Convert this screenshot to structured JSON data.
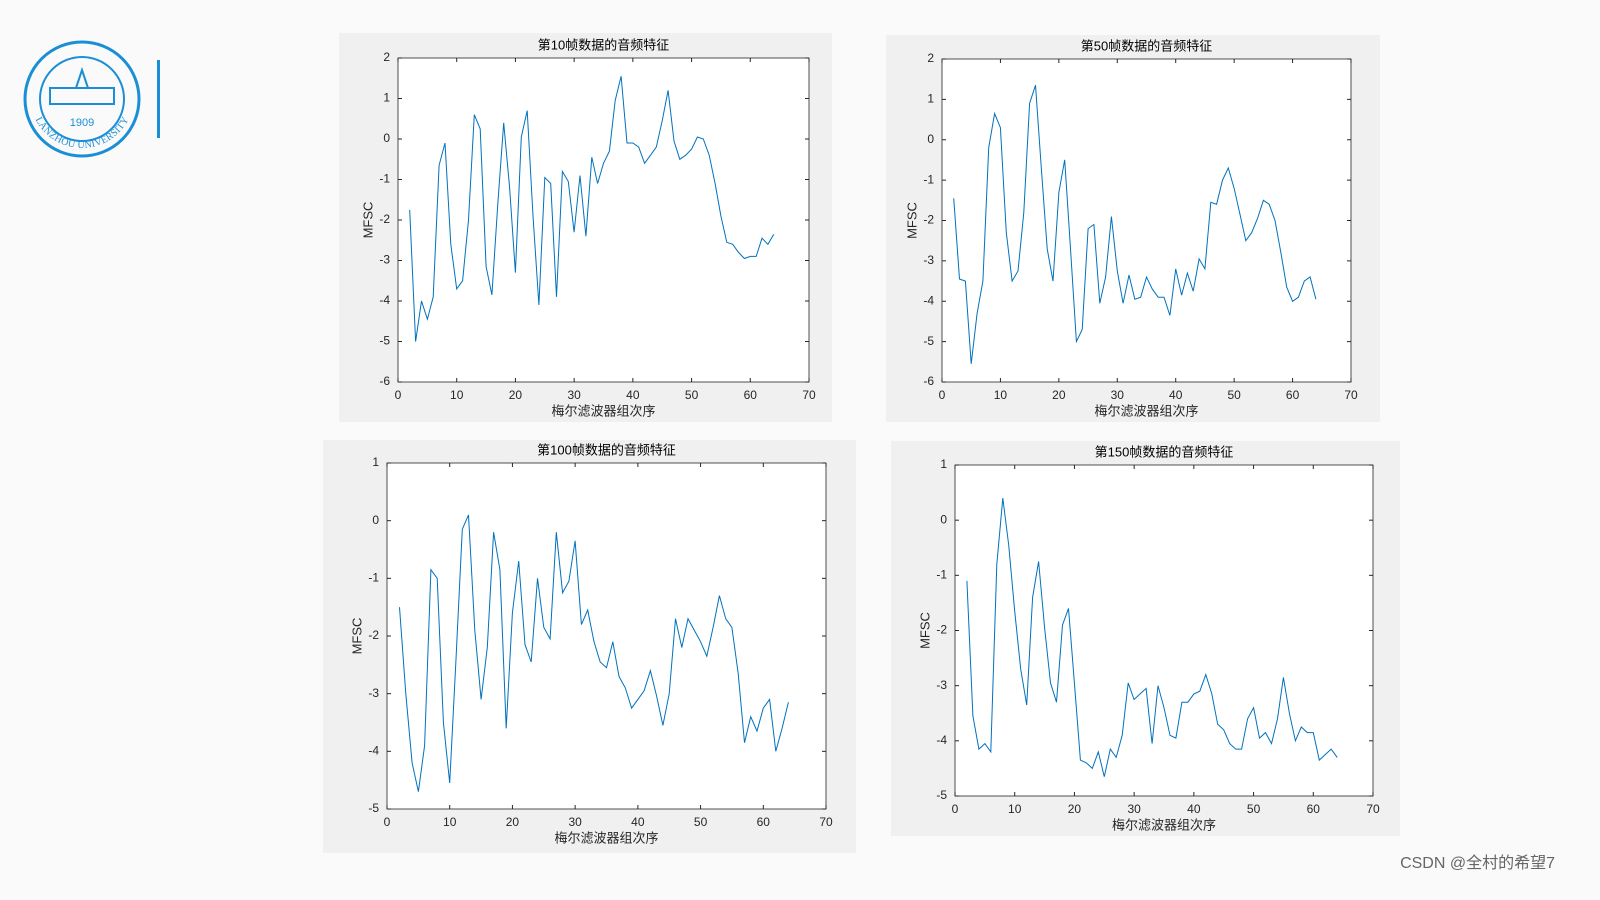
{
  "chart_data": [
    {
      "type": "line",
      "title": "第10帧数据的音频特征",
      "x_label": "梅尔滤波器组次序",
      "y_label": "MFSC",
      "x": [
        2,
        3,
        4,
        5,
        6,
        7,
        8,
        9,
        10,
        11,
        12,
        13,
        14,
        15,
        16,
        17,
        18,
        19,
        20,
        21,
        22,
        23,
        24,
        25,
        26,
        27,
        28,
        29,
        30,
        31,
        32,
        33,
        34,
        35,
        36,
        37,
        38,
        39,
        40,
        41,
        42,
        43,
        44,
        45,
        46,
        47,
        48,
        49,
        50,
        51,
        52,
        53,
        54,
        55,
        56,
        57,
        58,
        59,
        60,
        61,
        62,
        63,
        64
      ],
      "series": [
        {
          "color": "#0072bd",
          "values": [
            -1.75,
            -5.0,
            -4.0,
            -4.45,
            -3.9,
            -0.65,
            -0.1,
            -2.6,
            -3.7,
            -3.5,
            -2.0,
            0.6,
            0.25,
            -3.15,
            -3.85,
            -1.6,
            0.4,
            -1.2,
            -3.3,
            0.05,
            0.7,
            -1.9,
            -4.1,
            -0.95,
            -1.1,
            -3.9,
            -0.8,
            -1.05,
            -2.3,
            -0.9,
            -2.4,
            -0.45,
            -1.1,
            -0.6,
            -0.3,
            0.95,
            1.55,
            -0.1,
            -0.1,
            -0.2,
            -0.6,
            -0.4,
            -0.2,
            0.45,
            1.2,
            -0.05,
            -0.5,
            -0.4,
            -0.25,
            0.05,
            0.0,
            -0.4,
            -1.1,
            -1.9,
            -2.55,
            -2.6,
            -2.8,
            -2.95,
            -2.9,
            -2.9,
            -2.45,
            -2.6,
            -2.35
          ]
        }
      ],
      "xlim": [
        0,
        70
      ],
      "xticks": [
        0,
        10,
        20,
        30,
        40,
        50,
        60,
        70
      ],
      "ylim": [
        -6,
        2
      ],
      "yticks": [
        -6,
        -5,
        -4,
        -3,
        -2,
        -1,
        0,
        1,
        2
      ]
    },
    {
      "type": "line",
      "title": "第50帧数据的音频特征",
      "x_label": "梅尔滤波器组次序",
      "y_label": "MFSC",
      "x": [
        2,
        3,
        4,
        5,
        6,
        7,
        8,
        9,
        10,
        11,
        12,
        13,
        14,
        15,
        16,
        17,
        18,
        19,
        20,
        21,
        22,
        23,
        24,
        25,
        26,
        27,
        28,
        29,
        30,
        31,
        32,
        33,
        34,
        35,
        36,
        37,
        38,
        39,
        40,
        41,
        42,
        43,
        44,
        45,
        46,
        47,
        48,
        49,
        50,
        51,
        52,
        53,
        54,
        55,
        56,
        57,
        58,
        59,
        60,
        61,
        62,
        63,
        64
      ],
      "series": [
        {
          "color": "#0072bd",
          "values": [
            -1.45,
            -3.45,
            -3.5,
            -5.55,
            -4.3,
            -3.5,
            -0.2,
            0.65,
            0.3,
            -2.3,
            -3.5,
            -3.25,
            -1.8,
            0.9,
            1.35,
            -0.7,
            -2.7,
            -3.5,
            -1.3,
            -0.5,
            -2.7,
            -5.0,
            -4.7,
            -2.2,
            -2.1,
            -4.05,
            -3.4,
            -1.9,
            -3.25,
            -4.05,
            -3.35,
            -3.95,
            -3.9,
            -3.4,
            -3.7,
            -3.9,
            -3.9,
            -4.35,
            -3.2,
            -3.85,
            -3.3,
            -3.75,
            -2.95,
            -3.2,
            -1.55,
            -1.6,
            -1.0,
            -0.7,
            -1.2,
            -1.85,
            -2.5,
            -2.3,
            -1.95,
            -1.5,
            -1.6,
            -2.0,
            -2.8,
            -3.65,
            -4.0,
            -3.9,
            -3.5,
            -3.4,
            -3.95
          ]
        }
      ],
      "xlim": [
        0,
        70
      ],
      "xticks": [
        0,
        10,
        20,
        30,
        40,
        50,
        60,
        70
      ],
      "ylim": [
        -6,
        2
      ],
      "yticks": [
        -6,
        -5,
        -4,
        -3,
        -2,
        -1,
        0,
        1,
        2
      ]
    },
    {
      "type": "line",
      "title": "第100帧数据的音频特征",
      "x_label": "梅尔滤波器组次序",
      "y_label": "MFSC",
      "x": [
        2,
        3,
        4,
        5,
        6,
        7,
        8,
        9,
        10,
        11,
        12,
        13,
        14,
        15,
        16,
        17,
        18,
        19,
        20,
        21,
        22,
        23,
        24,
        25,
        26,
        27,
        28,
        29,
        30,
        31,
        32,
        33,
        34,
        35,
        36,
        37,
        38,
        39,
        40,
        41,
        42,
        43,
        44,
        45,
        46,
        47,
        48,
        49,
        50,
        51,
        52,
        53,
        54,
        55,
        56,
        57,
        58,
        59,
        60,
        61,
        62,
        63,
        64
      ],
      "series": [
        {
          "color": "#0072bd",
          "values": [
            -1.5,
            -3.0,
            -4.2,
            -4.7,
            -3.9,
            -0.85,
            -1.0,
            -3.5,
            -4.55,
            -2.4,
            -0.15,
            0.1,
            -1.9,
            -3.1,
            -2.2,
            -0.2,
            -0.85,
            -3.6,
            -1.6,
            -0.7,
            -2.15,
            -2.45,
            -1.0,
            -1.85,
            -2.05,
            -0.2,
            -1.25,
            -1.05,
            -0.35,
            -1.8,
            -1.55,
            -2.1,
            -2.45,
            -2.55,
            -2.1,
            -2.7,
            -2.9,
            -3.25,
            -3.1,
            -2.95,
            -2.6,
            -3.05,
            -3.55,
            -3.0,
            -1.7,
            -2.2,
            -1.7,
            -1.9,
            -2.1,
            -2.35,
            -1.85,
            -1.3,
            -1.7,
            -1.85,
            -2.65,
            -3.85,
            -3.4,
            -3.65,
            -3.25,
            -3.1,
            -4.0,
            -3.6,
            -3.15
          ]
        }
      ],
      "xlim": [
        0,
        70
      ],
      "xticks": [
        0,
        10,
        20,
        30,
        40,
        50,
        60,
        70
      ],
      "ylim": [
        -5,
        1
      ],
      "yticks": [
        -5,
        -4,
        -3,
        -2,
        -1,
        0,
        1
      ]
    },
    {
      "type": "line",
      "title": "第150帧数据的音频特征",
      "x_label": "梅尔滤波器组次序",
      "y_label": "MFSC",
      "x": [
        2,
        3,
        4,
        5,
        6,
        7,
        8,
        9,
        10,
        11,
        12,
        13,
        14,
        15,
        16,
        17,
        18,
        19,
        20,
        21,
        22,
        23,
        24,
        25,
        26,
        27,
        28,
        29,
        30,
        31,
        32,
        33,
        34,
        35,
        36,
        37,
        38,
        39,
        40,
        41,
        42,
        43,
        44,
        45,
        46,
        47,
        48,
        49,
        50,
        51,
        52,
        53,
        54,
        55,
        56,
        57,
        58,
        59,
        60,
        61,
        62,
        63,
        64
      ],
      "series": [
        {
          "color": "#0072bd",
          "values": [
            -1.1,
            -3.55,
            -4.15,
            -4.05,
            -4.2,
            -0.8,
            0.4,
            -0.45,
            -1.65,
            -2.7,
            -3.35,
            -1.4,
            -0.75,
            -1.95,
            -2.95,
            -3.3,
            -1.9,
            -1.6,
            -2.95,
            -4.35,
            -4.4,
            -4.5,
            -4.2,
            -4.65,
            -4.15,
            -4.3,
            -3.9,
            -2.95,
            -3.25,
            -3.15,
            -3.05,
            -4.05,
            -3.0,
            -3.4,
            -3.9,
            -3.95,
            -3.3,
            -3.3,
            -3.15,
            -3.1,
            -2.8,
            -3.15,
            -3.7,
            -3.8,
            -4.05,
            -4.15,
            -4.15,
            -3.6,
            -3.4,
            -3.95,
            -3.85,
            -4.05,
            -3.6,
            -2.85,
            -3.5,
            -4.0,
            -3.75,
            -3.85,
            -3.85,
            -4.35,
            -4.25,
            -4.15,
            -4.3
          ]
        }
      ],
      "xlim": [
        0,
        70
      ],
      "xticks": [
        0,
        10,
        20,
        30,
        40,
        50,
        60,
        70
      ],
      "ylim": [
        -5,
        1
      ],
      "yticks": [
        -5,
        -4,
        -3,
        -2,
        -1,
        0,
        1
      ]
    }
  ],
  "logo": {
    "year": "1909",
    "text": "LANZHOU UNIVERSITY"
  },
  "watermark": "CSDN @全村的希望7"
}
